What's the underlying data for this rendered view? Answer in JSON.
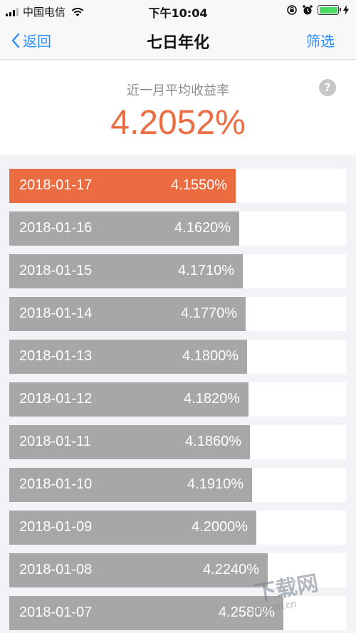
{
  "status_bar": {
    "carrier": "中国电信",
    "time": "下午10:04"
  },
  "nav": {
    "back_label": "返回",
    "title": "七日年化",
    "filter_label": "筛选"
  },
  "header": {
    "subtitle": "近一月平均收益率",
    "help_symbol": "?",
    "average_rate": "4.2052%"
  },
  "colors": {
    "accent": "#ec6c42",
    "bar_gray": "#a7a7a7",
    "link_blue": "#2b8cff"
  },
  "chart_data": {
    "type": "bar",
    "categories": [
      "2018-01-17",
      "2018-01-16",
      "2018-01-15",
      "2018-01-14",
      "2018-01-13",
      "2018-01-12",
      "2018-01-11",
      "2018-01-10",
      "2018-01-09",
      "2018-01-08",
      "2018-01-07"
    ],
    "labels": [
      "4.1550%",
      "4.1620%",
      "4.1710%",
      "4.1770%",
      "4.1800%",
      "4.1820%",
      "4.1860%",
      "4.1910%",
      "4.2000%",
      "4.2240%",
      "4.2580%"
    ],
    "values": [
      4.155,
      4.162,
      4.171,
      4.177,
      4.18,
      4.182,
      4.186,
      4.191,
      4.2,
      4.224,
      4.258
    ],
    "highlighted_index": 0
  },
  "watermark": {
    "text_big": "下载网",
    "text_small": "oft.com.cn"
  }
}
